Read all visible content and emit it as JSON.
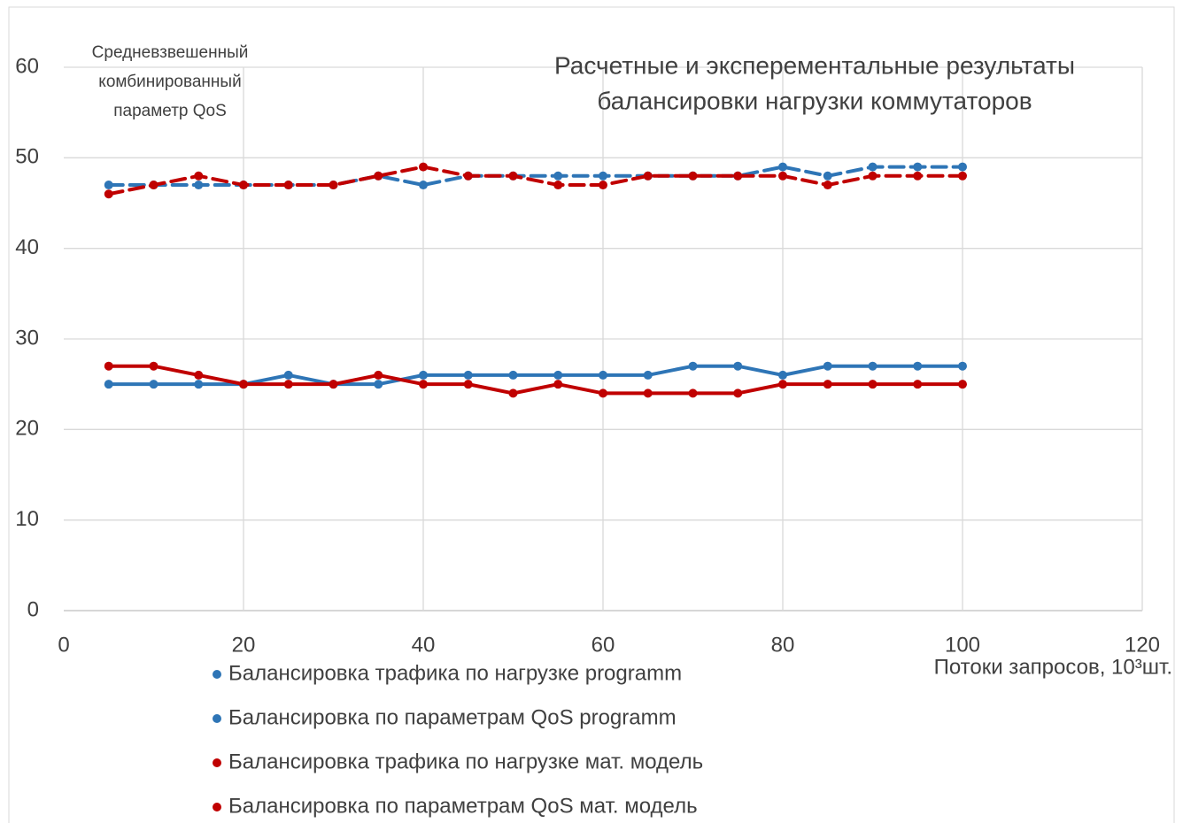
{
  "chart_data": {
    "type": "line",
    "title": [
      "Расчетные и эксперементальные результаты",
      "балансировки нагрузки коммутаторов"
    ],
    "y_label": [
      "Средневзвешенный",
      "комбинированный",
      "параметр QoS"
    ],
    "x_label": "Потоки запросов, 10³шт.",
    "x": [
      5,
      10,
      15,
      20,
      25,
      30,
      35,
      40,
      45,
      50,
      55,
      60,
      65,
      70,
      75,
      80,
      85,
      90,
      95,
      100
    ],
    "series": [
      {
        "name": "Балансировка трафика по нагрузке programm",
        "color": "#2e75b6",
        "dashed": false,
        "values": [
          25,
          25,
          25,
          25,
          26,
          25,
          25,
          26,
          26,
          26,
          26,
          26,
          26,
          27,
          27,
          26,
          27,
          27,
          27,
          27
        ]
      },
      {
        "name": "Балансировка по параметрам QoS programm",
        "color": "#2e75b6",
        "dashed": true,
        "values": [
          47,
          47,
          47,
          47,
          47,
          47,
          48,
          47,
          48,
          48,
          48,
          48,
          48,
          48,
          48,
          49,
          48,
          49,
          49,
          49
        ]
      },
      {
        "name": "Балансировка трафика по нагрузке мат. модель",
        "color": "#c00000",
        "dashed": false,
        "values": [
          27,
          27,
          26,
          25,
          25,
          25,
          26,
          25,
          25,
          24,
          25,
          24,
          24,
          24,
          24,
          25,
          25,
          25,
          25,
          25
        ]
      },
      {
        "name": "Балансировка по параметрам QoS мат. модель",
        "color": "#c00000",
        "dashed": true,
        "values": [
          46,
          47,
          48,
          47,
          47,
          47,
          48,
          49,
          48,
          48,
          47,
          47,
          48,
          48,
          48,
          48,
          47,
          48,
          48,
          48
        ]
      }
    ],
    "xlim": [
      0,
      120
    ],
    "xticks": [
      0,
      20,
      40,
      60,
      80,
      100,
      120
    ],
    "ylim": [
      0,
      60
    ],
    "yticks": [
      0,
      10,
      20,
      30,
      40,
      50,
      60
    ],
    "grid": true
  }
}
